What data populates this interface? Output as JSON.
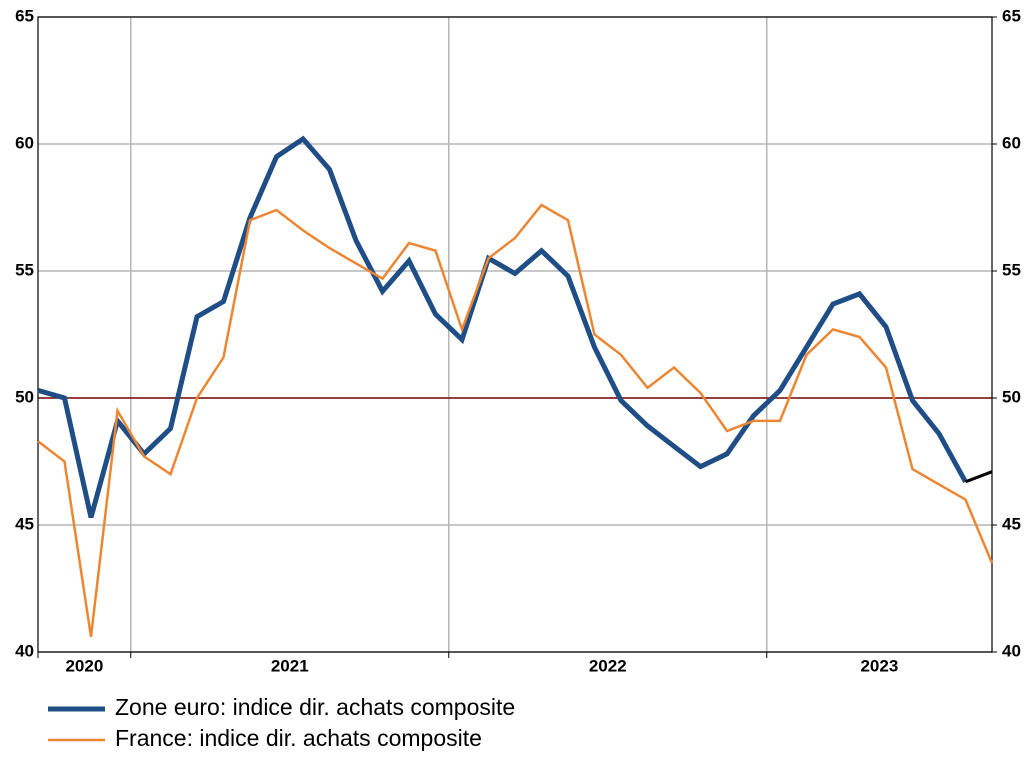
{
  "chart_data": {
    "type": "line",
    "categories": [
      "2020",
      null,
      null,
      null,
      "2021",
      null,
      null,
      null,
      null,
      null,
      null,
      null,
      null,
      null,
      null,
      null,
      "2022",
      null,
      null,
      null,
      null,
      null,
      null,
      null,
      null,
      null,
      null,
      null,
      "2023",
      null,
      null,
      null,
      null,
      null,
      null,
      null,
      null
    ],
    "series": [
      {
        "name": "Zone euro: indice dir. achats composite",
        "color": "#1f4e86",
        "width": 5,
        "values": [
          50.3,
          50.0,
          45.3,
          49.1,
          47.8,
          48.8,
          53.2,
          53.8,
          57.1,
          59.5,
          60.2,
          59.0,
          56.2,
          54.2,
          55.4,
          53.3,
          52.3,
          55.5,
          54.9,
          55.8,
          54.8,
          52.0,
          49.9,
          48.9,
          48.1,
          47.3,
          47.8,
          49.3,
          50.3,
          52.0,
          53.7,
          54.1,
          52.8,
          49.9,
          48.6,
          46.7,
          null
        ]
      },
      {
        "name": "France: indice dir. achats composite",
        "color": "#ed8632",
        "width": 2.5,
        "values": [
          48.3,
          47.5,
          40.6,
          49.5,
          47.7,
          47.0,
          50.0,
          51.6,
          57.0,
          57.4,
          56.6,
          55.9,
          55.3,
          54.7,
          56.1,
          55.8,
          52.7,
          55.5,
          56.3,
          57.6,
          57.0,
          52.5,
          51.7,
          50.4,
          51.2,
          50.2,
          48.7,
          49.1,
          49.1,
          51.7,
          52.7,
          52.4,
          51.2,
          47.2,
          46.6,
          46.0,
          43.5
        ]
      },
      {
        "color": "#000000",
        "width": 3,
        "values": [
          null,
          null,
          null,
          null,
          null,
          null,
          null,
          null,
          null,
          null,
          null,
          null,
          null,
          null,
          null,
          null,
          null,
          null,
          null,
          null,
          null,
          null,
          null,
          null,
          null,
          null,
          null,
          null,
          null,
          null,
          null,
          null,
          null,
          null,
          null,
          46.7,
          47.1
        ]
      }
    ],
    "ylim": [
      40,
      65
    ],
    "yticks": [
      40,
      45,
      50,
      55,
      60,
      65
    ],
    "y2lim": [
      40,
      65
    ],
    "y2ticks": [
      40,
      45,
      50,
      55,
      60,
      65
    ],
    "reference_line": 50,
    "reference_color": "#7b0c0c",
    "grid": true,
    "legend": "bottom"
  }
}
